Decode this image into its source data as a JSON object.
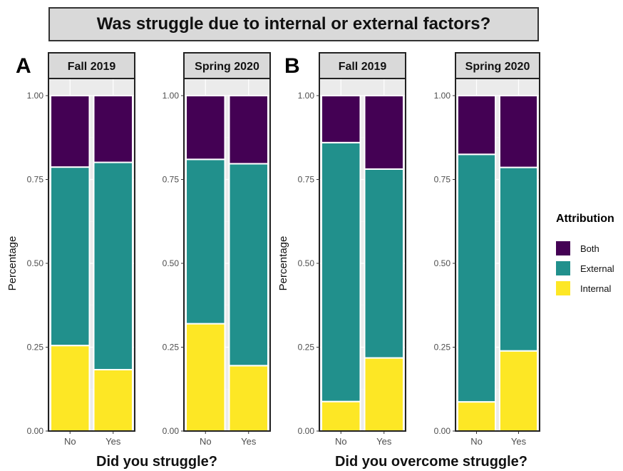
{
  "title": "Was struggle due to internal or external factors?",
  "panels": {
    "a": {
      "letter": "A",
      "xlabel": "Did you struggle?"
    },
    "b": {
      "letter": "B",
      "xlabel": "Did you overcome struggle?"
    }
  },
  "ylabel": "Percentage",
  "legend": {
    "title": "Attribution",
    "position": "right",
    "items": [
      {
        "label": "Both",
        "color": "#440154"
      },
      {
        "label": "External",
        "color": "#21908c"
      },
      {
        "label": "Internal",
        "color": "#fde725"
      }
    ]
  },
  "chart_data": [
    {
      "type": "bar",
      "stacked": true,
      "panel": "A",
      "facet": "Fall 2019",
      "categories": [
        "No",
        "Yes"
      ],
      "series": [
        {
          "name": "Internal",
          "values": [
            0.255,
            0.183
          ]
        },
        {
          "name": "External",
          "values": [
            0.532,
            0.618
          ]
        },
        {
          "name": "Both",
          "values": [
            0.213,
            0.199
          ]
        }
      ],
      "ylabel": "Percentage",
      "ylim": [
        0,
        1
      ],
      "yticks": [
        "0.00",
        "0.25",
        "0.50",
        "0.75",
        "1.00"
      ],
      "grid": true
    },
    {
      "type": "bar",
      "stacked": true,
      "panel": "A",
      "facet": "Spring 2020",
      "categories": [
        "No",
        "Yes"
      ],
      "series": [
        {
          "name": "Internal",
          "values": [
            0.32,
            0.195
          ]
        },
        {
          "name": "External",
          "values": [
            0.49,
            0.602
          ]
        },
        {
          "name": "Both",
          "values": [
            0.19,
            0.203
          ]
        }
      ],
      "ylabel": "Percentage",
      "ylim": [
        0,
        1
      ],
      "yticks": [
        "0.00",
        "0.25",
        "0.50",
        "0.75",
        "1.00"
      ],
      "grid": true
    },
    {
      "type": "bar",
      "stacked": true,
      "panel": "B",
      "facet": "Fall 2019",
      "categories": [
        "No",
        "Yes"
      ],
      "series": [
        {
          "name": "Internal",
          "values": [
            0.088,
            0.218
          ]
        },
        {
          "name": "External",
          "values": [
            0.772,
            0.563
          ]
        },
        {
          "name": "Both",
          "values": [
            0.14,
            0.219
          ]
        }
      ],
      "ylabel": "Percentage",
      "ylim": [
        0,
        1
      ],
      "yticks": [
        "0.00",
        "0.25",
        "0.50",
        "0.75",
        "1.00"
      ],
      "grid": true
    },
    {
      "type": "bar",
      "stacked": true,
      "panel": "B",
      "facet": "Spring 2020",
      "categories": [
        "No",
        "Yes"
      ],
      "series": [
        {
          "name": "Internal",
          "values": [
            0.087,
            0.239
          ]
        },
        {
          "name": "External",
          "values": [
            0.738,
            0.547
          ]
        },
        {
          "name": "Both",
          "values": [
            0.175,
            0.214
          ]
        }
      ],
      "ylabel": "Percentage",
      "ylim": [
        0,
        1
      ],
      "yticks": [
        "0.00",
        "0.25",
        "0.50",
        "0.75",
        "1.00"
      ],
      "grid": true
    }
  ]
}
